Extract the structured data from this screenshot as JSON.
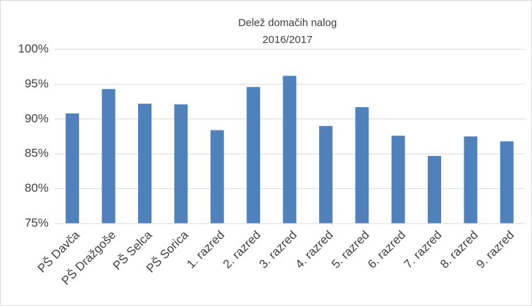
{
  "chart_data": {
    "type": "bar",
    "title": "Delež domačih nalog",
    "subtitle": "2016/2017",
    "categories": [
      "PŠ Davča",
      "PŠ Dražgoše",
      "PŠ Selca",
      "PŠ Sorica",
      "1. razred",
      "2. razred",
      "3. razred",
      "4. razred",
      "5. razred",
      "6. razred",
      "7. razred",
      "8. razred",
      "9. razred"
    ],
    "values": [
      90.8,
      94.3,
      92.2,
      92.1,
      88.4,
      94.6,
      96.2,
      89.0,
      91.7,
      87.6,
      84.7,
      87.5,
      86.8
    ],
    "color": "#4f81bd",
    "ylim": [
      75,
      100
    ],
    "yticks": [
      {
        "value": 75,
        "label": "75%"
      },
      {
        "value": 80,
        "label": "80%"
      },
      {
        "value": 85,
        "label": "85%"
      },
      {
        "value": 90,
        "label": "90%"
      },
      {
        "value": 95,
        "label": "95%"
      },
      {
        "value": 100,
        "label": "100%"
      }
    ],
    "grid": true
  }
}
